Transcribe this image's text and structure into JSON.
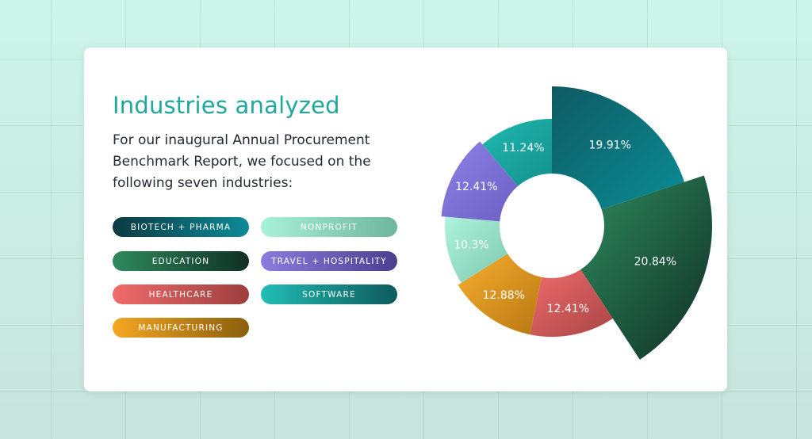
{
  "header": {
    "title": "Industries analyzed",
    "intro": "For our inaugural Annual Procurement Benchmark Report, we focused on the following seven industries:"
  },
  "legend": [
    {
      "label": "BIOTECH + PHARMA",
      "from": "#0a3a42",
      "to": "#0d8b97"
    },
    {
      "label": "NONPROFIT",
      "from": "#a9f2da",
      "to": "#6db59c"
    },
    {
      "label": "EDUCATION",
      "from": "#2f8a5e",
      "to": "#0f3024"
    },
    {
      "label": "TRAVEL + HOSPITALITY",
      "from": "#8a7ce0",
      "to": "#4a3f8f"
    },
    {
      "label": "HEALTHCARE",
      "from": "#f06b6b",
      "to": "#9e3e3e"
    },
    {
      "label": "SOFTWARE",
      "from": "#22bdb5",
      "to": "#0d5a5e"
    },
    {
      "label": "MANUFACTURING",
      "from": "#f5a623",
      "to": "#8a5f0d"
    }
  ],
  "chart_data": {
    "type": "pie",
    "variant": "rose-donut",
    "slices": [
      {
        "label": "19.91%",
        "value": 19.91,
        "category": "BIOTECH + PHARMA",
        "color_from": "#0f5a62",
        "color_to": "#0a8d96"
      },
      {
        "label": "20.84%",
        "value": 20.84,
        "category": "EDUCATION",
        "color_from": "#2f8a5e",
        "color_to": "#0f3024"
      },
      {
        "label": "12.41%",
        "value": 12.41,
        "category": "HEALTHCARE",
        "color_from": "#f06b6b",
        "color_to": "#a84545"
      },
      {
        "label": "12.88%",
        "value": 12.88,
        "category": "MANUFACTURING",
        "color_from": "#f7ad2e",
        "color_to": "#b87812"
      },
      {
        "label": "10.3%",
        "value": 10.3,
        "category": "NONPROFIT",
        "color_from": "#aef3dc",
        "color_to": "#7ec8ae"
      },
      {
        "label": "12.41%",
        "value": 12.41,
        "category": "TRAVEL + HOSPITALITY",
        "color_from": "#8e82e6",
        "color_to": "#6a5fc4"
      },
      {
        "label": "11.24%",
        "value": 11.24,
        "category": "SOFTWARE",
        "color_from": "#1fb9b1",
        "color_to": "#14908c"
      }
    ]
  }
}
